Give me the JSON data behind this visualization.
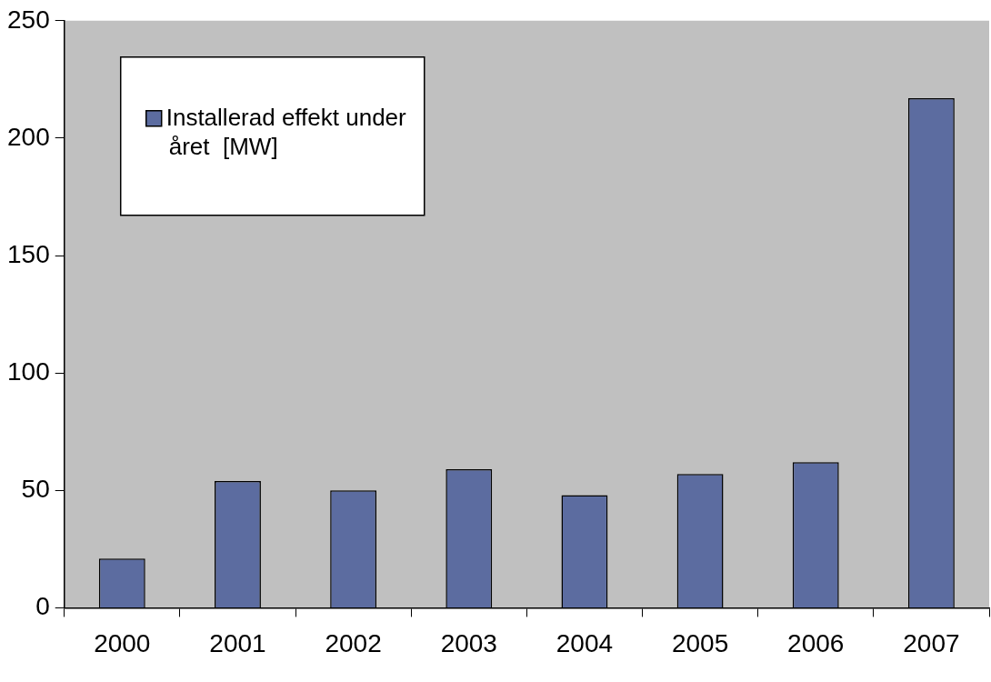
{
  "chart_data": {
    "type": "bar",
    "categories": [
      "2000",
      "2001",
      "2002",
      "2003",
      "2004",
      "2005",
      "2006",
      "2007"
    ],
    "series": [
      {
        "name": "Installerad effekt under året  [MW]",
        "color": "#5c6ca0",
        "values": [
          21,
          54,
          50,
          59,
          48,
          57,
          62,
          217
        ]
      }
    ],
    "ylim": [
      0,
      250
    ],
    "yticks": [
      0,
      50,
      100,
      150,
      200,
      250
    ],
    "grid": false,
    "legend": "top left"
  }
}
